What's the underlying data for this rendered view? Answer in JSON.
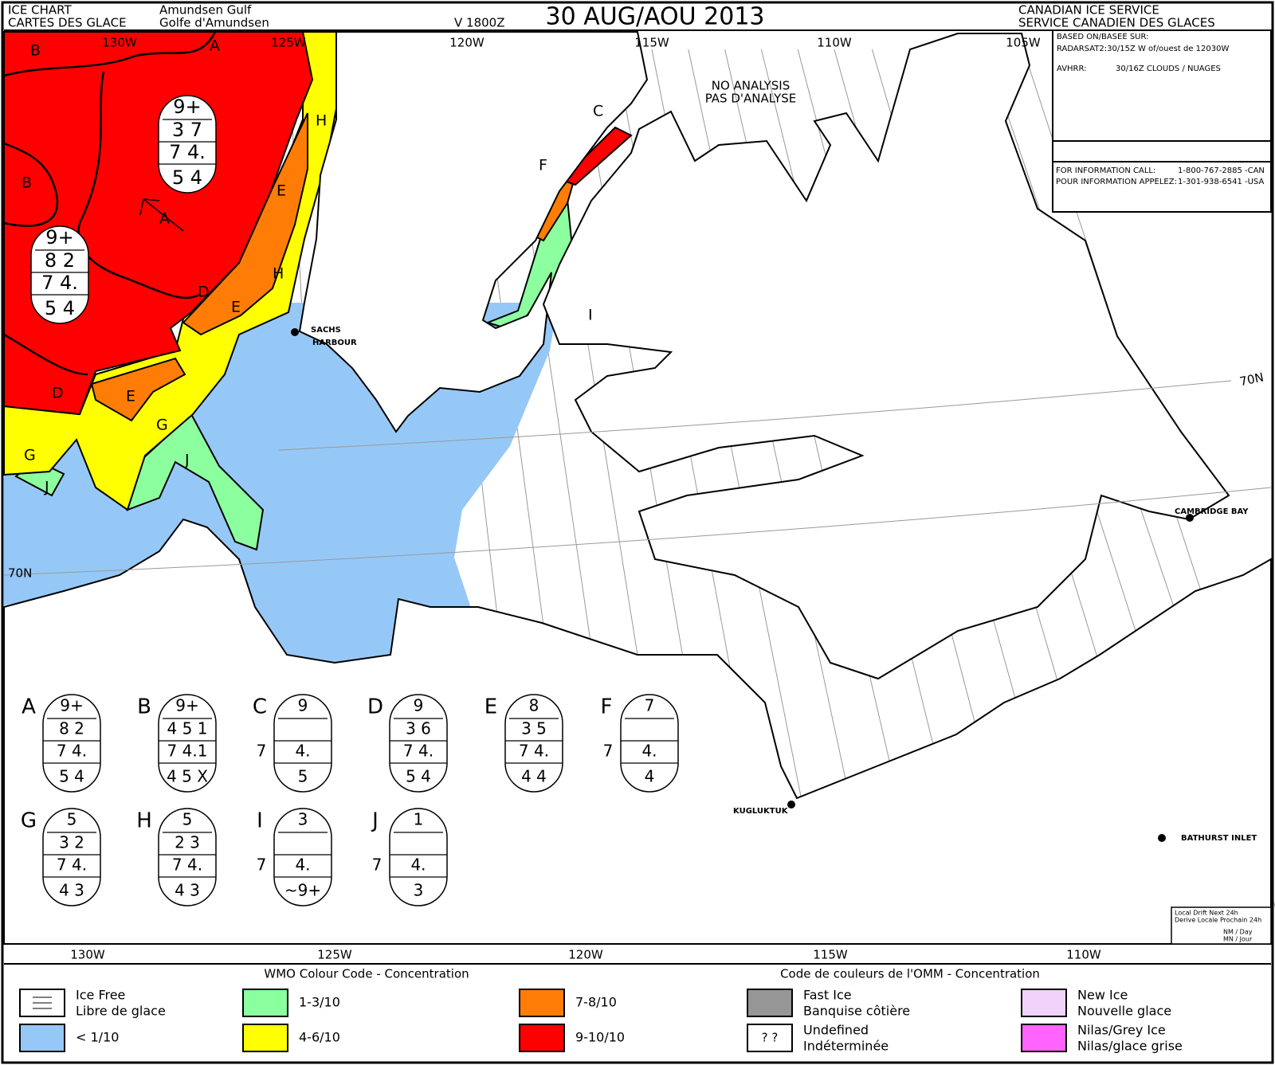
{
  "header": {
    "chart_title": [
      "ICE CHART",
      "CARTES DES GLACE"
    ],
    "region": [
      "Amundsen Gulf",
      "Golfe d'Amundsen"
    ],
    "valid": "V 1800Z",
    "date": "30 AUG/AOU 2013",
    "agency": [
      "CANADIAN ICE SERVICE",
      "SERVICE CANADIEN DES GLACES"
    ]
  },
  "info_box": {
    "based_on": "BASED ON/BASEE SUR:",
    "radarsat": "RADARSAT2:30/15Z W of/ouest de 12030W",
    "avhrr_label": "AVHRR:",
    "avhrr": "30/16Z CLOUDS / NUAGES",
    "call_en": "FOR INFORMATION CALL:",
    "phone_en": "1-800-767-2885 -CAN",
    "call_fr": "POUR INFORMATION APPELEZ:",
    "phone_fr": "1-301-938-6541 -USA"
  },
  "map": {
    "top_longitudes": [
      "130W",
      "125W",
      "120W",
      "115W",
      "110W",
      "105W"
    ],
    "bottom_longitudes": [
      "130W",
      "125W",
      "120W",
      "115W",
      "110W"
    ],
    "latitudes": [
      "70N",
      "70N"
    ],
    "places": [
      "SACHS",
      "HARBOUR",
      "CAMBRIDGE BAY",
      "KUGLUKTUK",
      "BATHURST INLET"
    ],
    "no_analysis": [
      "NO ANALYSIS",
      "PAS D'ANALYSE"
    ],
    "zone_labels": [
      "A",
      "B",
      "H",
      "B",
      "E",
      "A",
      "H",
      "D",
      "E",
      "D",
      "E",
      "G",
      "G",
      "J",
      "J",
      "C",
      "F",
      "I"
    ],
    "map_eggs": [
      {
        "total": "9+",
        "partial": "3 7",
        "stage": "7 4.",
        "form": "5 4"
      },
      {
        "total": "9+",
        "partial": "8 2",
        "stage": "7 4.",
        "form": "5 4"
      }
    ]
  },
  "egg_codes": [
    {
      "letter": "A",
      "total": "9+",
      "partial": "8 2",
      "stage": "7 4.",
      "form": "5 4"
    },
    {
      "letter": "B",
      "total": "9+",
      "partial": "4 5 1",
      "stage": "7 4.1",
      "form": "4 5 X"
    },
    {
      "letter": "C",
      "total": "9",
      "side": "7",
      "stage": "4.",
      "form": "5"
    },
    {
      "letter": "D",
      "total": "9",
      "partial": "3 6",
      "stage": "7 4.",
      "form": "5 4"
    },
    {
      "letter": "E",
      "total": "8",
      "partial": "3 5",
      "stage": "7 4.",
      "form": "4 4"
    },
    {
      "letter": "F",
      "total": "7",
      "side": "7",
      "stage": "4.",
      "form": "4"
    },
    {
      "letter": "G",
      "total": "5",
      "partial": "3 2",
      "stage": "7 4.",
      "form": "4 3"
    },
    {
      "letter": "H",
      "total": "5",
      "partial": "2 3",
      "stage": "7 4.",
      "form": "4 3"
    },
    {
      "letter": "I",
      "total": "3",
      "side": "7",
      "stage": "4.",
      "form": "~9+"
    },
    {
      "letter": "J",
      "total": "1",
      "side": "7",
      "stage": "4.",
      "form": "3"
    }
  ],
  "drift_box": [
    "Local Drift Next 24h",
    "Derive Locale Prochain 24h",
    "NM / Day",
    "MN / Jour"
  ],
  "legend": {
    "title_en": "WMO Colour Code - Concentration",
    "title_fr": "Code de couleurs de l'OMM - Concentration",
    "items": [
      {
        "label": [
          "Ice Free",
          "Libre de glace"
        ],
        "color": "#ffffff"
      },
      {
        "label": [
          "< 1/10"
        ],
        "color": "#96c8f7"
      },
      {
        "label": [
          "1-3/10"
        ],
        "color": "#8cff9f"
      },
      {
        "label": [
          "4-6/10"
        ],
        "color": "#ffff00"
      },
      {
        "label": [
          "7-8/10"
        ],
        "color": "#ff7d07"
      },
      {
        "label": [
          "9-10/10"
        ],
        "color": "#ff0000"
      },
      {
        "label": [
          "Fast Ice",
          "Banquise côtière"
        ],
        "color": "#969696"
      },
      {
        "label": [
          "Undefined",
          "Indéterminée"
        ],
        "color": "#ffffff",
        "symbol": "? ?"
      },
      {
        "label": [
          "New Ice",
          "Nouvelle glace"
        ],
        "color": "#f0d2fa"
      },
      {
        "label": [
          "Nilas/Grey Ice",
          "Nilas/glace grise"
        ],
        "color": "#ff64ff"
      }
    ]
  }
}
